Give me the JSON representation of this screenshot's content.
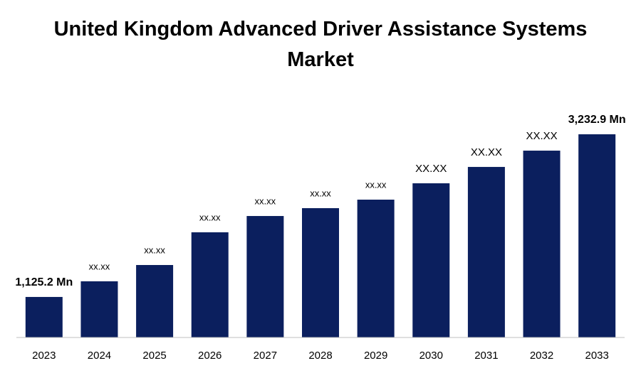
{
  "chart_data": {
    "type": "bar",
    "title": "United Kingdom Advanced Driver Assistance Systems Market",
    "categories": [
      "2023",
      "2024",
      "2025",
      "2026",
      "2027",
      "2028",
      "2029",
      "2030",
      "2031",
      "2032",
      "2033"
    ],
    "values": [
      1125.2,
      1328,
      1539,
      1963,
      2174,
      2276,
      2386,
      2598,
      2810,
      3021,
      3232.9
    ],
    "value_labels": [
      "1,125.2 Mn",
      "xx.xx",
      "xx.xx",
      "xx.xx",
      "xx.xx",
      "xx.xx",
      "xx.xx",
      "XX.XX",
      "XX.XX",
      "XX.XX",
      "3,232.9 Mn"
    ],
    "color": "#0b1f5e",
    "ylim": [
      600,
      3500
    ]
  }
}
